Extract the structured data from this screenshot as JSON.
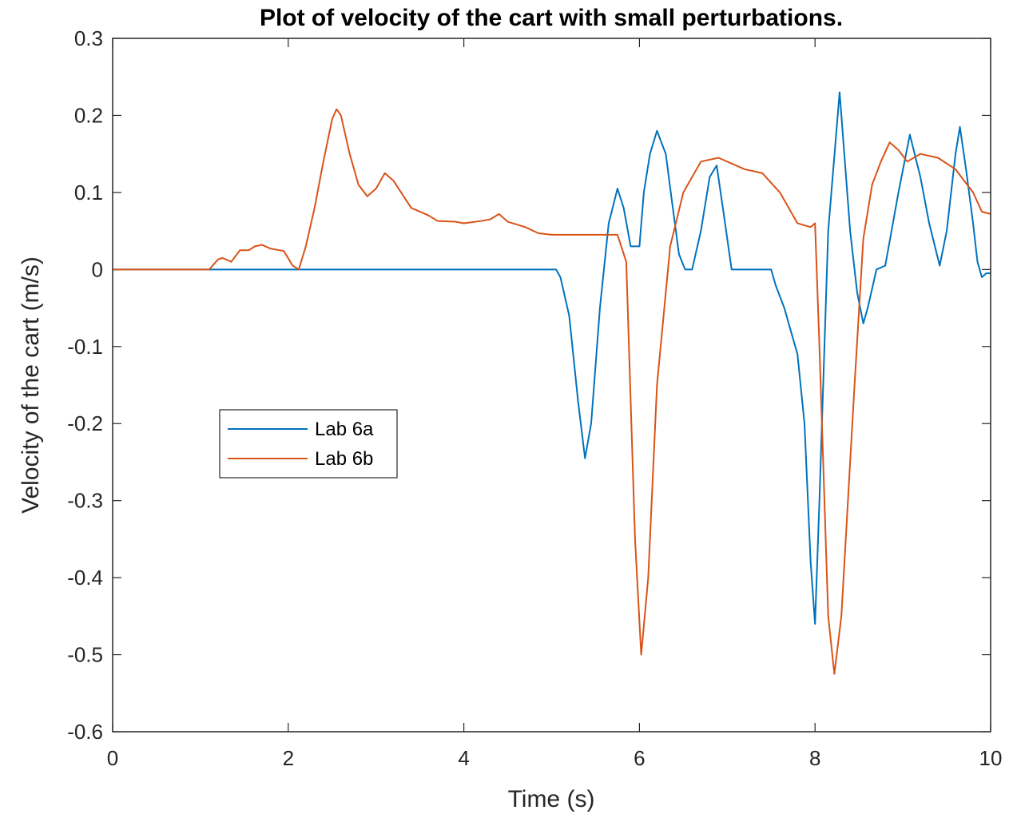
{
  "chart_data": {
    "type": "line",
    "title": "Plot of velocity of the cart with small perturbations.",
    "xlabel": "Time (s)",
    "ylabel": "Velocity of the cart (m/s)",
    "xlim": [
      0,
      10
    ],
    "ylim": [
      -0.6,
      0.3
    ],
    "xticks": [
      "0",
      "2",
      "4",
      "6",
      "8",
      "10"
    ],
    "yticks": [
      "0.3",
      "0.2",
      "0.1",
      "0",
      "-0.1",
      "-0.2",
      "-0.3",
      "-0.4",
      "-0.5",
      "-0.6"
    ],
    "grid": false,
    "legend_position": "left-middle",
    "series": [
      {
        "name": "Lab 6a",
        "color": "#0072BD",
        "x": [
          0,
          5.05,
          5.1,
          5.2,
          5.3,
          5.38,
          5.45,
          5.55,
          5.65,
          5.75,
          5.82,
          5.9,
          6.0,
          6.05,
          6.12,
          6.2,
          6.3,
          6.38,
          6.45,
          6.52,
          6.6,
          6.7,
          6.8,
          6.88,
          6.95,
          7.05,
          7.1,
          7.3,
          7.5,
          7.55,
          7.65,
          7.75,
          7.8,
          7.88,
          7.95,
          8.0,
          8.05,
          8.15,
          8.28,
          8.4,
          8.48,
          8.55,
          8.6,
          8.7,
          8.8,
          8.95,
          9.08,
          9.2,
          9.3,
          9.42,
          9.5,
          9.6,
          9.65,
          9.72,
          9.8,
          9.85,
          9.9,
          9.95,
          10
        ],
        "y": [
          0,
          0,
          -0.01,
          -0.06,
          -0.17,
          -0.245,
          -0.2,
          -0.05,
          0.06,
          0.105,
          0.08,
          0.03,
          0.03,
          0.1,
          0.15,
          0.18,
          0.15,
          0.08,
          0.02,
          0,
          0,
          0.05,
          0.12,
          0.135,
          0.08,
          0,
          0,
          0,
          0,
          -0.02,
          -0.05,
          -0.09,
          -0.11,
          -0.2,
          -0.38,
          -0.46,
          -0.3,
          0.05,
          0.23,
          0.05,
          -0.03,
          -0.07,
          -0.05,
          0,
          0.005,
          0.1,
          0.175,
          0.12,
          0.06,
          0.005,
          0.05,
          0.15,
          0.185,
          0.13,
          0.06,
          0.01,
          -0.01,
          -0.005,
          -0.005
        ]
      },
      {
        "name": "Lab 6b",
        "color": "#D95319",
        "x": [
          0,
          1.1,
          1.2,
          1.25,
          1.35,
          1.45,
          1.55,
          1.62,
          1.7,
          1.8,
          1.95,
          2.05,
          2.12,
          2.2,
          2.3,
          2.4,
          2.5,
          2.55,
          2.6,
          2.7,
          2.8,
          2.9,
          3.0,
          3.1,
          3.2,
          3.4,
          3.6,
          3.7,
          3.9,
          4.0,
          4.2,
          4.3,
          4.4,
          4.5,
          4.7,
          4.85,
          5.0,
          5.2,
          5.5,
          5.75,
          5.85,
          5.95,
          6.02,
          6.1,
          6.2,
          6.35,
          6.5,
          6.7,
          6.9,
          7.0,
          7.2,
          7.4,
          7.6,
          7.8,
          7.95,
          8.0,
          8.05,
          8.15,
          8.22,
          8.3,
          8.45,
          8.55,
          8.65,
          8.75,
          8.85,
          8.95,
          9.05,
          9.2,
          9.4,
          9.6,
          9.8,
          9.9,
          10
        ],
        "y": [
          0,
          0,
          0.013,
          0.015,
          0.01,
          0.025,
          0.025,
          0.03,
          0.032,
          0.027,
          0.024,
          0.005,
          0,
          0.03,
          0.08,
          0.14,
          0.195,
          0.208,
          0.2,
          0.15,
          0.11,
          0.095,
          0.105,
          0.125,
          0.115,
          0.08,
          0.07,
          0.063,
          0.062,
          0.06,
          0.063,
          0.065,
          0.072,
          0.062,
          0.055,
          0.047,
          0.045,
          0.045,
          0.045,
          0.045,
          0.01,
          -0.35,
          -0.5,
          -0.4,
          -0.15,
          0.03,
          0.1,
          0.14,
          0.145,
          0.14,
          0.13,
          0.125,
          0.1,
          0.06,
          0.055,
          0.06,
          -0.1,
          -0.45,
          -0.525,
          -0.45,
          -0.15,
          0.04,
          0.11,
          0.14,
          0.165,
          0.155,
          0.14,
          0.15,
          0.145,
          0.13,
          0.1,
          0.075,
          0.072
        ]
      }
    ]
  }
}
